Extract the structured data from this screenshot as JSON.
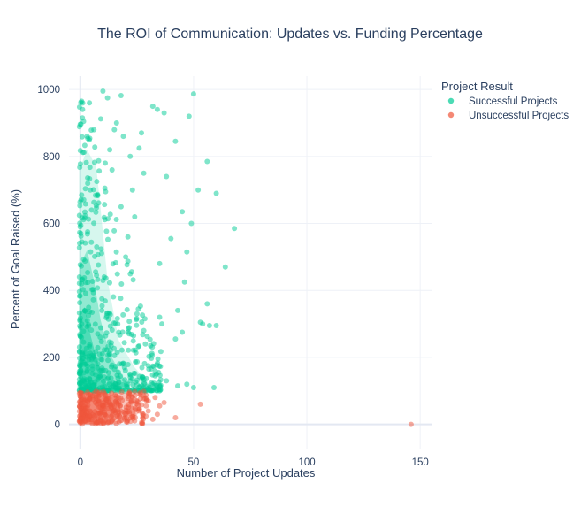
{
  "chart_data": {
    "type": "scatter",
    "title": "The ROI of Communication: Updates vs. Funding Percentage",
    "xlabel": "Number of Project Updates",
    "ylabel": "Percent of Goal Raised (%)",
    "xlim": [
      -5,
      155
    ],
    "ylim": [
      -75,
      1040
    ],
    "x_ticks": [
      0,
      50,
      100,
      150
    ],
    "y_ticks": [
      0,
      200,
      400,
      600,
      800,
      1000
    ],
    "grid": true,
    "legend": {
      "title": "Project Result",
      "placement": "top-right"
    },
    "series": [
      {
        "name": "Successful Projects",
        "color": "#00cc96",
        "opacity": 0.5,
        "distribution": "dense cluster of points with 100-1000% of goal raised and 0-20 updates, thinning out toward 68 updates",
        "points": [
          [
            10,
            995
          ],
          [
            50,
            987
          ],
          [
            12,
            975
          ],
          [
            18,
            982
          ],
          [
            32,
            950
          ],
          [
            34,
            940
          ],
          [
            37,
            930
          ],
          [
            48,
            920
          ],
          [
            1,
            940
          ],
          [
            27,
            870
          ],
          [
            15,
            880
          ],
          [
            42,
            845
          ],
          [
            56,
            785
          ],
          [
            26,
            825
          ],
          [
            9,
            912
          ],
          [
            52,
            700
          ],
          [
            60,
            690
          ],
          [
            68,
            585
          ],
          [
            64,
            470
          ],
          [
            28,
            750
          ],
          [
            47,
            515
          ],
          [
            45,
            635
          ],
          [
            38,
            740
          ],
          [
            22,
            800
          ],
          [
            49,
            600
          ],
          [
            40,
            555
          ],
          [
            46,
            425
          ],
          [
            56,
            360
          ],
          [
            53,
            305
          ],
          [
            57,
            295
          ],
          [
            60,
            295
          ],
          [
            45,
            275
          ],
          [
            42,
            255
          ],
          [
            35,
            320
          ],
          [
            43,
            340
          ],
          [
            36,
            300
          ],
          [
            54,
            300
          ],
          [
            59,
            110
          ],
          [
            50,
            110
          ],
          [
            47,
            120
          ],
          [
            43,
            115
          ],
          [
            38,
            130
          ],
          [
            33,
            145
          ],
          [
            30,
            175
          ],
          [
            31,
            235
          ],
          [
            25,
            330
          ],
          [
            28,
            280
          ],
          [
            20,
            500
          ],
          [
            18,
            650
          ],
          [
            23,
            700
          ],
          [
            14,
            760
          ],
          [
            35,
            480
          ],
          [
            24,
            620
          ],
          [
            21,
            560
          ],
          [
            16,
            900
          ],
          [
            19,
            860
          ],
          [
            13,
            820
          ],
          [
            11,
            780
          ],
          [
            4,
            960
          ],
          [
            6,
            880
          ],
          [
            3,
            860
          ]
        ]
      },
      {
        "name": "Unsuccessful Projects",
        "color": "#ef553b",
        "opacity": 0.5,
        "distribution": "dense band of points with 0-100% of goal raised and 0-25 updates, plus a lone outlier near 146 updates",
        "points": [
          [
            146,
            0
          ],
          [
            53,
            60
          ],
          [
            42,
            20
          ],
          [
            30,
            70
          ],
          [
            35,
            55
          ],
          [
            34,
            30
          ],
          [
            32,
            15
          ],
          [
            28,
            85
          ],
          [
            26,
            45
          ],
          [
            24,
            10
          ],
          [
            30,
            40
          ],
          [
            37,
            65
          ],
          [
            22,
            90
          ],
          [
            27,
            5
          ],
          [
            33,
            80
          ],
          [
            29,
            25
          ]
        ]
      }
    ]
  }
}
